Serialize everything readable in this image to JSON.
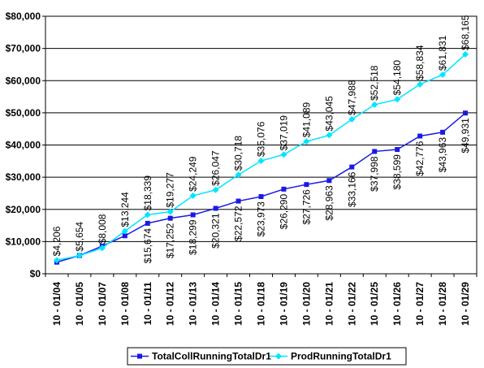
{
  "chart_data": {
    "type": "line",
    "title": "",
    "xlabel": "",
    "ylabel": "",
    "ylim": [
      0,
      80000
    ],
    "yticks": [
      0,
      10000,
      20000,
      30000,
      40000,
      50000,
      60000,
      70000,
      80000
    ],
    "ytick_labels": [
      "$0",
      "$10,000",
      "$20,000",
      "$30,000",
      "$40,000",
      "$50,000",
      "$60,000",
      "$70,000",
      "$80,000"
    ],
    "grid": "horizontal",
    "legend_position": "bottom",
    "categories": [
      "10 - 01/04",
      "10 - 01/05",
      "10 - 01/07",
      "10 - 01/08",
      "10 - 01/11",
      "10 - 01/12",
      "10 - 01/13",
      "10 - 01/14",
      "10 - 01/15",
      "10 - 01/18",
      "10 - 01/19",
      "10 - 01/20",
      "10 - 01/21",
      "10 - 01/22",
      "10 - 01/25",
      "10 - 01/26",
      "10 - 01/27",
      "10 - 01/28",
      "10 - 01/29"
    ],
    "series": [
      {
        "name": "TotalCollRunningTotalDr1",
        "color": "#1a1ae6",
        "marker": "square",
        "values": [
          3600,
          5654,
          8600,
          11800,
          15674,
          17252,
          18299,
          20321,
          22572,
          23973,
          26290,
          27726,
          28963,
          33166,
          37998,
          38599,
          42776,
          43963,
          49931
        ],
        "labels": [
          "",
          "",
          "",
          "",
          "$15,674",
          "$17,252",
          "$18,299",
          "$20,321",
          "$22,572",
          "$23,973",
          "$26,290",
          "$27,726",
          "$28,963",
          "$33,166",
          "$37,998",
          "$38,599",
          "$42,776",
          "$43,963",
          "$49,931"
        ]
      },
      {
        "name": "ProdRunningTotalDr1",
        "color": "#00e5ff",
        "marker": "diamond",
        "values": [
          4206,
          5654,
          8008,
          13244,
          18339,
          19277,
          24249,
          26047,
          30718,
          35076,
          37019,
          41089,
          43045,
          47988,
          52518,
          54180,
          58834,
          61831,
          68165
        ],
        "labels": [
          "$4,206",
          "$5,654",
          "$8,008",
          "$13,244",
          "$18,339",
          "$19,277",
          "$24,249",
          "$26,047",
          "$30,718",
          "$35,076",
          "$37,019",
          "$41,089",
          "$43,045",
          "$47,988",
          "$52,518",
          "$54,180",
          "$58,834",
          "$61,831",
          "$68,165"
        ]
      }
    ]
  }
}
